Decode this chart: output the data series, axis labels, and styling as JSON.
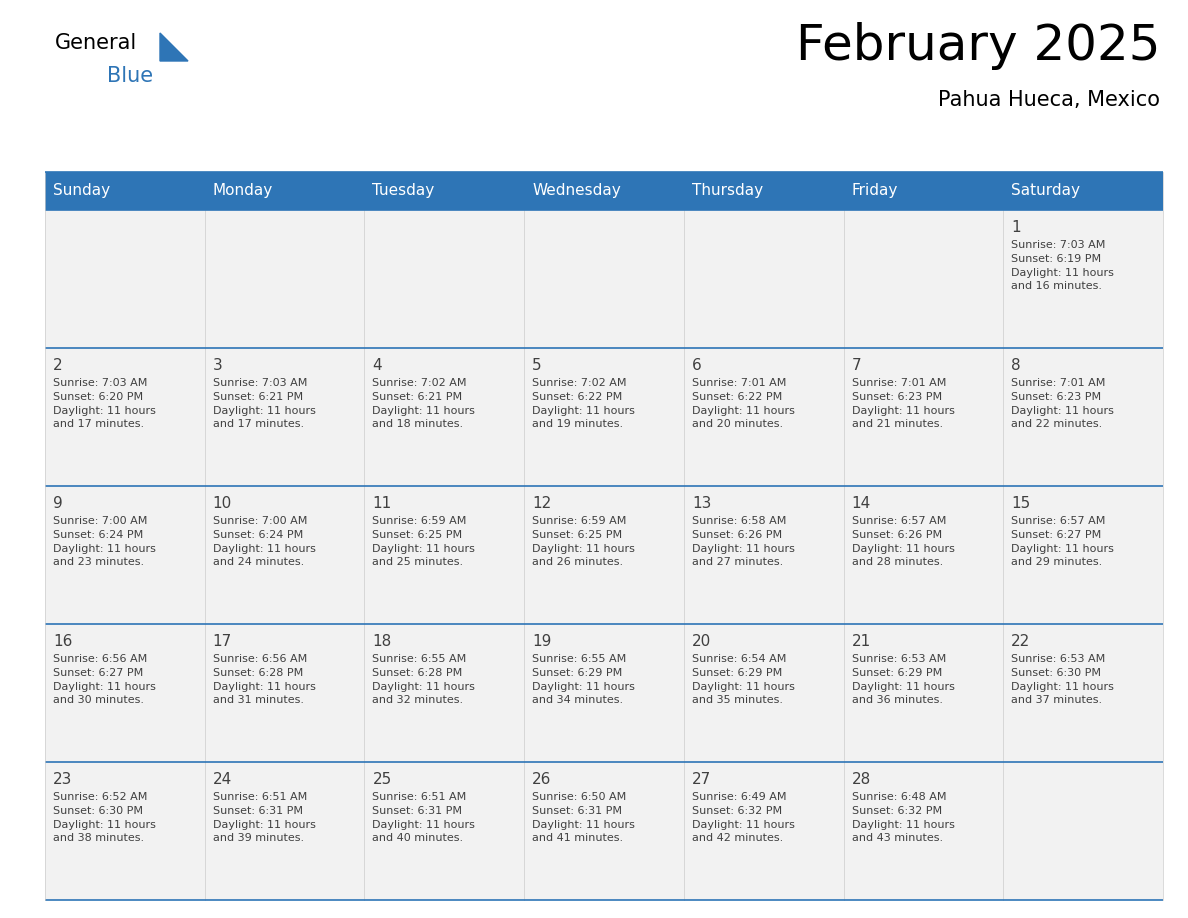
{
  "title": "February 2025",
  "subtitle": "Pahua Hueca, Mexico",
  "header_bg_color": "#2E75B6",
  "header_text_color": "#FFFFFF",
  "cell_bg_even": "#FFFFFF",
  "cell_bg_odd": "#F2F2F2",
  "border_color": "#2E75B6",
  "separator_color": "#CCCCCC",
  "day_headers": [
    "Sunday",
    "Monday",
    "Tuesday",
    "Wednesday",
    "Thursday",
    "Friday",
    "Saturday"
  ],
  "weeks": [
    [
      {
        "day": "",
        "info": ""
      },
      {
        "day": "",
        "info": ""
      },
      {
        "day": "",
        "info": ""
      },
      {
        "day": "",
        "info": ""
      },
      {
        "day": "",
        "info": ""
      },
      {
        "day": "",
        "info": ""
      },
      {
        "day": "1",
        "info": "Sunrise: 7:03 AM\nSunset: 6:19 PM\nDaylight: 11 hours\nand 16 minutes."
      }
    ],
    [
      {
        "day": "2",
        "info": "Sunrise: 7:03 AM\nSunset: 6:20 PM\nDaylight: 11 hours\nand 17 minutes."
      },
      {
        "day": "3",
        "info": "Sunrise: 7:03 AM\nSunset: 6:21 PM\nDaylight: 11 hours\nand 17 minutes."
      },
      {
        "day": "4",
        "info": "Sunrise: 7:02 AM\nSunset: 6:21 PM\nDaylight: 11 hours\nand 18 minutes."
      },
      {
        "day": "5",
        "info": "Sunrise: 7:02 AM\nSunset: 6:22 PM\nDaylight: 11 hours\nand 19 minutes."
      },
      {
        "day": "6",
        "info": "Sunrise: 7:01 AM\nSunset: 6:22 PM\nDaylight: 11 hours\nand 20 minutes."
      },
      {
        "day": "7",
        "info": "Sunrise: 7:01 AM\nSunset: 6:23 PM\nDaylight: 11 hours\nand 21 minutes."
      },
      {
        "day": "8",
        "info": "Sunrise: 7:01 AM\nSunset: 6:23 PM\nDaylight: 11 hours\nand 22 minutes."
      }
    ],
    [
      {
        "day": "9",
        "info": "Sunrise: 7:00 AM\nSunset: 6:24 PM\nDaylight: 11 hours\nand 23 minutes."
      },
      {
        "day": "10",
        "info": "Sunrise: 7:00 AM\nSunset: 6:24 PM\nDaylight: 11 hours\nand 24 minutes."
      },
      {
        "day": "11",
        "info": "Sunrise: 6:59 AM\nSunset: 6:25 PM\nDaylight: 11 hours\nand 25 minutes."
      },
      {
        "day": "12",
        "info": "Sunrise: 6:59 AM\nSunset: 6:25 PM\nDaylight: 11 hours\nand 26 minutes."
      },
      {
        "day": "13",
        "info": "Sunrise: 6:58 AM\nSunset: 6:26 PM\nDaylight: 11 hours\nand 27 minutes."
      },
      {
        "day": "14",
        "info": "Sunrise: 6:57 AM\nSunset: 6:26 PM\nDaylight: 11 hours\nand 28 minutes."
      },
      {
        "day": "15",
        "info": "Sunrise: 6:57 AM\nSunset: 6:27 PM\nDaylight: 11 hours\nand 29 minutes."
      }
    ],
    [
      {
        "day": "16",
        "info": "Sunrise: 6:56 AM\nSunset: 6:27 PM\nDaylight: 11 hours\nand 30 minutes."
      },
      {
        "day": "17",
        "info": "Sunrise: 6:56 AM\nSunset: 6:28 PM\nDaylight: 11 hours\nand 31 minutes."
      },
      {
        "day": "18",
        "info": "Sunrise: 6:55 AM\nSunset: 6:28 PM\nDaylight: 11 hours\nand 32 minutes."
      },
      {
        "day": "19",
        "info": "Sunrise: 6:55 AM\nSunset: 6:29 PM\nDaylight: 11 hours\nand 34 minutes."
      },
      {
        "day": "20",
        "info": "Sunrise: 6:54 AM\nSunset: 6:29 PM\nDaylight: 11 hours\nand 35 minutes."
      },
      {
        "day": "21",
        "info": "Sunrise: 6:53 AM\nSunset: 6:29 PM\nDaylight: 11 hours\nand 36 minutes."
      },
      {
        "day": "22",
        "info": "Sunrise: 6:53 AM\nSunset: 6:30 PM\nDaylight: 11 hours\nand 37 minutes."
      }
    ],
    [
      {
        "day": "23",
        "info": "Sunrise: 6:52 AM\nSunset: 6:30 PM\nDaylight: 11 hours\nand 38 minutes."
      },
      {
        "day": "24",
        "info": "Sunrise: 6:51 AM\nSunset: 6:31 PM\nDaylight: 11 hours\nand 39 minutes."
      },
      {
        "day": "25",
        "info": "Sunrise: 6:51 AM\nSunset: 6:31 PM\nDaylight: 11 hours\nand 40 minutes."
      },
      {
        "day": "26",
        "info": "Sunrise: 6:50 AM\nSunset: 6:31 PM\nDaylight: 11 hours\nand 41 minutes."
      },
      {
        "day": "27",
        "info": "Sunrise: 6:49 AM\nSunset: 6:32 PM\nDaylight: 11 hours\nand 42 minutes."
      },
      {
        "day": "28",
        "info": "Sunrise: 6:48 AM\nSunset: 6:32 PM\nDaylight: 11 hours\nand 43 minutes."
      },
      {
        "day": "",
        "info": ""
      }
    ]
  ],
  "fig_width": 11.88,
  "fig_height": 9.18,
  "title_fontsize": 36,
  "subtitle_fontsize": 15,
  "header_fontsize": 11,
  "day_num_fontsize": 11,
  "info_fontsize": 8
}
